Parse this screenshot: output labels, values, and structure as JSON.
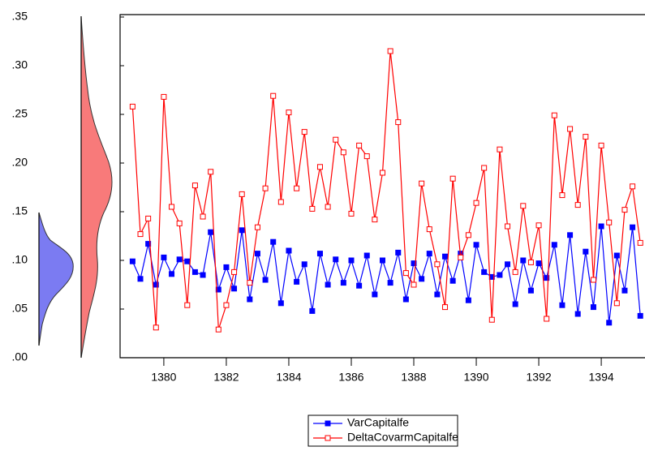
{
  "chart_data": {
    "type": "line",
    "x": [
      1379,
      1379.25,
      1379.5,
      1379.75,
      1380,
      1380.25,
      1380.5,
      1380.75,
      1381,
      1381.25,
      1381.5,
      1381.75,
      1382,
      1382.25,
      1382.5,
      1382.75,
      1383,
      1383.25,
      1383.5,
      1383.75,
      1384,
      1384.25,
      1384.5,
      1384.75,
      1385,
      1385.25,
      1385.5,
      1385.75,
      1386,
      1386.25,
      1386.5,
      1386.75,
      1387,
      1387.25,
      1387.5,
      1387.75,
      1388,
      1388.25,
      1388.5,
      1388.75,
      1389,
      1389.25,
      1389.5,
      1389.75,
      1390,
      1390.25,
      1390.5,
      1390.75,
      1391,
      1391.25,
      1391.5,
      1391.75,
      1392,
      1392.25,
      1392.5,
      1392.75,
      1393,
      1393.25,
      1393.5,
      1393.75,
      1394,
      1394.25,
      1394.5,
      1394.75,
      1395,
      1395.25
    ],
    "series": [
      {
        "name": "VarCapitalfe",
        "color": "#0000ff",
        "values": [
          0.099,
          0.081,
          0.117,
          0.075,
          0.103,
          0.086,
          0.101,
          0.099,
          0.088,
          0.085,
          0.129,
          0.07,
          0.093,
          0.071,
          0.131,
          0.06,
          0.107,
          0.08,
          0.119,
          0.056,
          0.11,
          0.078,
          0.096,
          0.048,
          0.107,
          0.075,
          0.101,
          0.077,
          0.1,
          0.074,
          0.105,
          0.065,
          0.1,
          0.077,
          0.108,
          0.06,
          0.097,
          0.081,
          0.107,
          0.065,
          0.104,
          0.079,
          0.107,
          0.059,
          0.116,
          0.088,
          0.083,
          0.085,
          0.096,
          0.055,
          0.1,
          0.069,
          0.097,
          0.082,
          0.116,
          0.054,
          0.126,
          0.045,
          0.109,
          0.052,
          0.135,
          0.036,
          0.105,
          0.069,
          0.134,
          0.043
        ]
      },
      {
        "name": "DeltaCovarmCapitalfe",
        "color": "#ff0000",
        "values": [
          0.258,
          0.127,
          0.143,
          0.031,
          0.268,
          0.155,
          0.138,
          0.054,
          0.177,
          0.145,
          0.191,
          0.029,
          0.054,
          0.088,
          0.168,
          0.077,
          0.134,
          0.174,
          0.269,
          0.16,
          0.252,
          0.174,
          0.232,
          0.153,
          0.196,
          0.155,
          0.224,
          0.211,
          0.148,
          0.218,
          0.207,
          0.142,
          0.19,
          0.315,
          0.242,
          0.087,
          0.075,
          0.179,
          0.132,
          0.096,
          0.052,
          0.184,
          0.103,
          0.126,
          0.159,
          0.195,
          0.039,
          0.214,
          0.135,
          0.088,
          0.156,
          0.098,
          0.136,
          0.04,
          0.249,
          0.167,
          0.235,
          0.157,
          0.227,
          0.08,
          0.218,
          0.139,
          0.056,
          0.152,
          0.176,
          0.118
        ]
      }
    ],
    "xlim": [
      1378.6,
      1395.4
    ],
    "xticks": [
      1380,
      1382,
      1384,
      1386,
      1388,
      1390,
      1392,
      1394
    ],
    "ylim": [
      0,
      0.35
    ],
    "yticks": [
      {
        "value": 0,
        "label": ".00"
      },
      {
        "value": 0.05,
        "label": ".05"
      },
      {
        "value": 0.1,
        "label": ".10"
      },
      {
        "value": 0.15,
        "label": ".15"
      },
      {
        "value": 0.2,
        "label": ".20"
      },
      {
        "value": 0.25,
        "label": ".25"
      },
      {
        "value": 0.3,
        "label": ".30"
      },
      {
        "value": 0.35,
        "label": ".35"
      }
    ],
    "legend": "bottom"
  }
}
